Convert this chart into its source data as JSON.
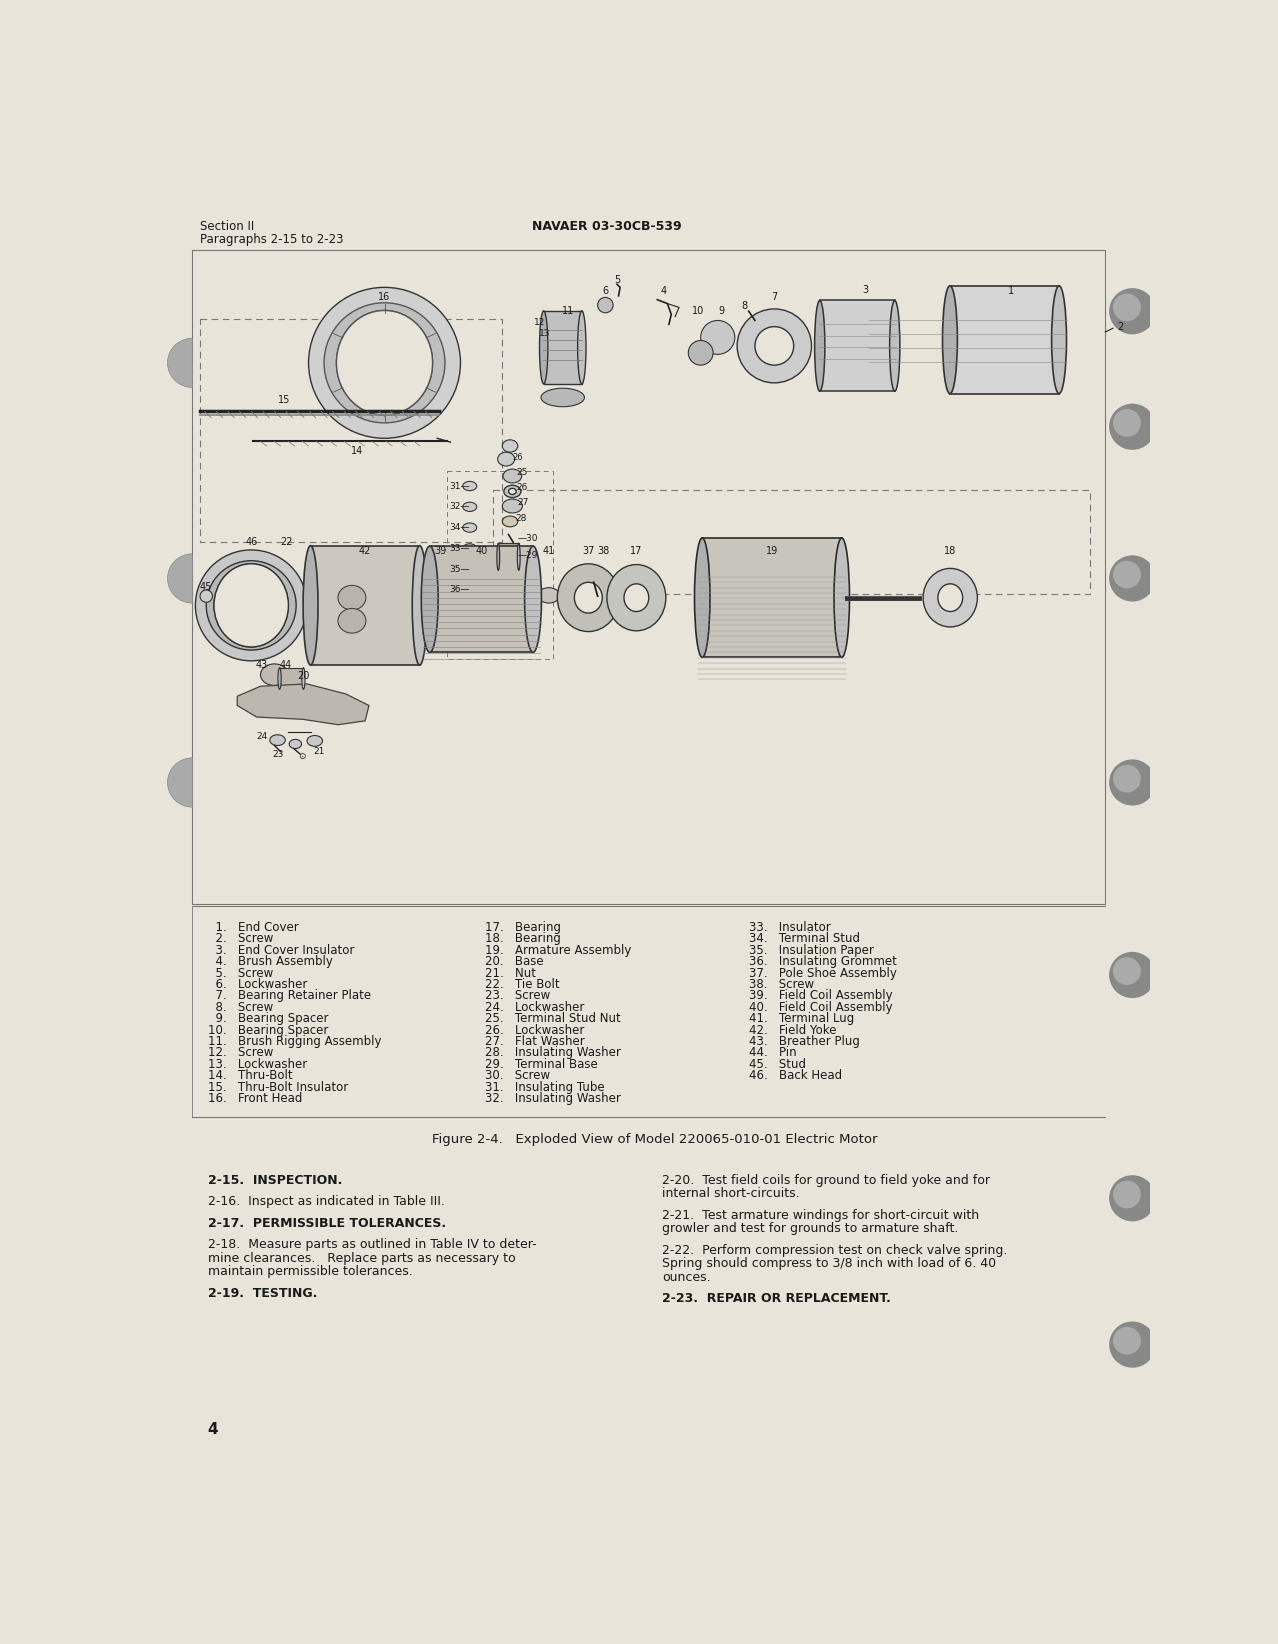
{
  "page_bg": "#e8e4da",
  "header_left_line1": "Section II",
  "header_left_line2": "Paragraphs 2-15 to 2-23",
  "header_right": "NAVAER 03-30CB-539",
  "figure_caption": "Figure 2-4.   Exploded View of Model 220065-010-01 Electric Motor",
  "page_number": "4",
  "parts_list_col1": [
    "  1.   End Cover",
    "  2.   Screw",
    "  3.   End Cover Insulator",
    "  4.   Brush Assembly",
    "  5.   Screw",
    "  6.   Lockwasher",
    "  7.   Bearing Retainer Plate",
    "  8.   Screw",
    "  9.   Bearing Spacer",
    "10.   Bearing Spacer",
    "11.   Brush Rigging Assembly",
    "12.   Screw",
    "13.   Lockwasher",
    "14.   Thru-Bolt",
    "15.   Thru-Bolt Insulator",
    "16.   Front Head"
  ],
  "parts_list_col2": [
    "17.   Bearing",
    "18.   Bearing",
    "19.   Armature Assembly",
    "20.   Base",
    "21.   Nut",
    "22.   Tie Bolt",
    "23.   Screw",
    "24.   Lockwasher",
    "25.   Terminal Stud Nut",
    "26.   Lockwasher",
    "27.   Flat Washer",
    "28.   Insulating Washer",
    "29.   Terminal Base",
    "30.   Screw",
    "31.   Insulating Tube",
    "32.   Insulating Washer"
  ],
  "parts_list_col3": [
    "33.   Insulator",
    "34.   Terminal Stud",
    "35.   Insulation Paper",
    "36.   Insulating Grommet",
    "37.   Pole Shoe Assembly",
    "38.   Screw",
    "39.   Field Coil Assembly",
    "40.   Field Coil Assembly",
    "41.   Terminal Lug",
    "42.   Field Yoke",
    "43.   Breather Plug",
    "44.   Pin",
    "45.   Stud",
    "46.   Back Head"
  ],
  "text_col1": [
    {
      "bold": true,
      "indent": false,
      "text": "2-15.  INSPECTION."
    },
    {
      "bold": false,
      "indent": false,
      "text": ""
    },
    {
      "bold": false,
      "indent": false,
      "text": "2-16.  Inspect as indicated in Table III."
    },
    {
      "bold": false,
      "indent": false,
      "text": ""
    },
    {
      "bold": true,
      "indent": false,
      "text": "2-17.  PERMISSIBLE TOLERANCES."
    },
    {
      "bold": false,
      "indent": false,
      "text": ""
    },
    {
      "bold": false,
      "indent": true,
      "text": "2-18.  Measure parts as outlined in Table IV to deter-"
    },
    {
      "bold": false,
      "indent": true,
      "text": "mine clearances.   Replace parts as necessary to"
    },
    {
      "bold": false,
      "indent": true,
      "text": "maintain permissible tolerances."
    },
    {
      "bold": false,
      "indent": false,
      "text": ""
    },
    {
      "bold": true,
      "indent": false,
      "text": "2-19.  TESTING."
    }
  ],
  "text_col2": [
    {
      "bold": false,
      "text": "2-20.  Test field coils for ground to field yoke and for"
    },
    {
      "bold": false,
      "text": "internal short-circuits."
    },
    {
      "bold": false,
      "text": ""
    },
    {
      "bold": false,
      "text": "2-21.  Test armature windings for short-circuit with"
    },
    {
      "bold": false,
      "text": "growler and test for grounds to armature shaft."
    },
    {
      "bold": false,
      "text": ""
    },
    {
      "bold": false,
      "text": "2-22.  Perform compression test on check valve spring."
    },
    {
      "bold": false,
      "text": "Spring should compress to 3/8 inch with load of 6. 40"
    },
    {
      "bold": false,
      "text": "ounces."
    },
    {
      "bold": false,
      "text": ""
    },
    {
      "bold": true,
      "text": "2-23.  REPAIR OR REPLACEMENT."
    }
  ],
  "font_color": "#1a1a1a",
  "diagram_color": "#222222",
  "diagram_light": "#cccccc",
  "diagram_mid": "#999999"
}
